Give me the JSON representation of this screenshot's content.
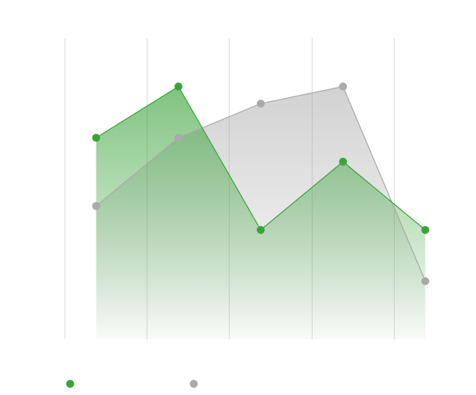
{
  "chart_data": {
    "type": "area",
    "x_count": 5,
    "ylim": [
      0,
      9
    ],
    "grid": "vertical",
    "legend_position": "bottom-left",
    "series": [
      {
        "values": [
          5.9,
          7.4,
          3.2,
          5.2,
          3.2
        ],
        "color": "#3aa33a"
      },
      {
        "values": [
          3.9,
          5.9,
          6.9,
          7.4,
          1.7
        ],
        "color": "#aaaaaa"
      }
    ]
  }
}
